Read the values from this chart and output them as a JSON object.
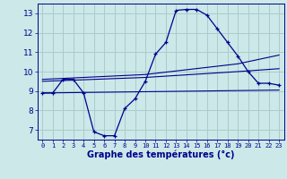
{
  "xlabel": "Graphe des températures (°c)",
  "bg_color": "#cce8e8",
  "grid_color": "#aacccc",
  "line_color": "#00008b",
  "xlim": [
    -0.5,
    23.5
  ],
  "ylim": [
    6.5,
    13.5
  ],
  "xticks": [
    0,
    1,
    2,
    3,
    4,
    5,
    6,
    7,
    8,
    9,
    10,
    11,
    12,
    13,
    14,
    15,
    16,
    17,
    18,
    19,
    20,
    21,
    22,
    23
  ],
  "yticks": [
    7,
    8,
    9,
    10,
    11,
    12,
    13
  ],
  "temp_curve": [
    [
      0,
      8.9
    ],
    [
      1,
      8.9
    ],
    [
      2,
      9.6
    ],
    [
      3,
      9.6
    ],
    [
      4,
      8.9
    ],
    [
      5,
      6.9
    ],
    [
      6,
      6.7
    ],
    [
      7,
      6.7
    ],
    [
      8,
      8.1
    ],
    [
      9,
      8.6
    ],
    [
      10,
      9.5
    ],
    [
      11,
      10.9
    ],
    [
      12,
      11.5
    ],
    [
      13,
      13.15
    ],
    [
      14,
      13.2
    ],
    [
      15,
      13.2
    ],
    [
      16,
      12.9
    ],
    [
      17,
      12.2
    ],
    [
      18,
      11.5
    ],
    [
      19,
      10.8
    ],
    [
      20,
      10.0
    ],
    [
      21,
      9.4
    ],
    [
      22,
      9.4
    ],
    [
      23,
      9.3
    ]
  ],
  "line1": [
    [
      0,
      8.9
    ],
    [
      23,
      9.05
    ]
  ],
  "line2": [
    [
      0,
      9.5
    ],
    [
      10,
      9.7
    ],
    [
      19,
      10.0
    ],
    [
      23,
      10.15
    ]
  ],
  "line3": [
    [
      0,
      9.6
    ],
    [
      10,
      9.85
    ],
    [
      19,
      10.4
    ],
    [
      23,
      10.85
    ]
  ]
}
